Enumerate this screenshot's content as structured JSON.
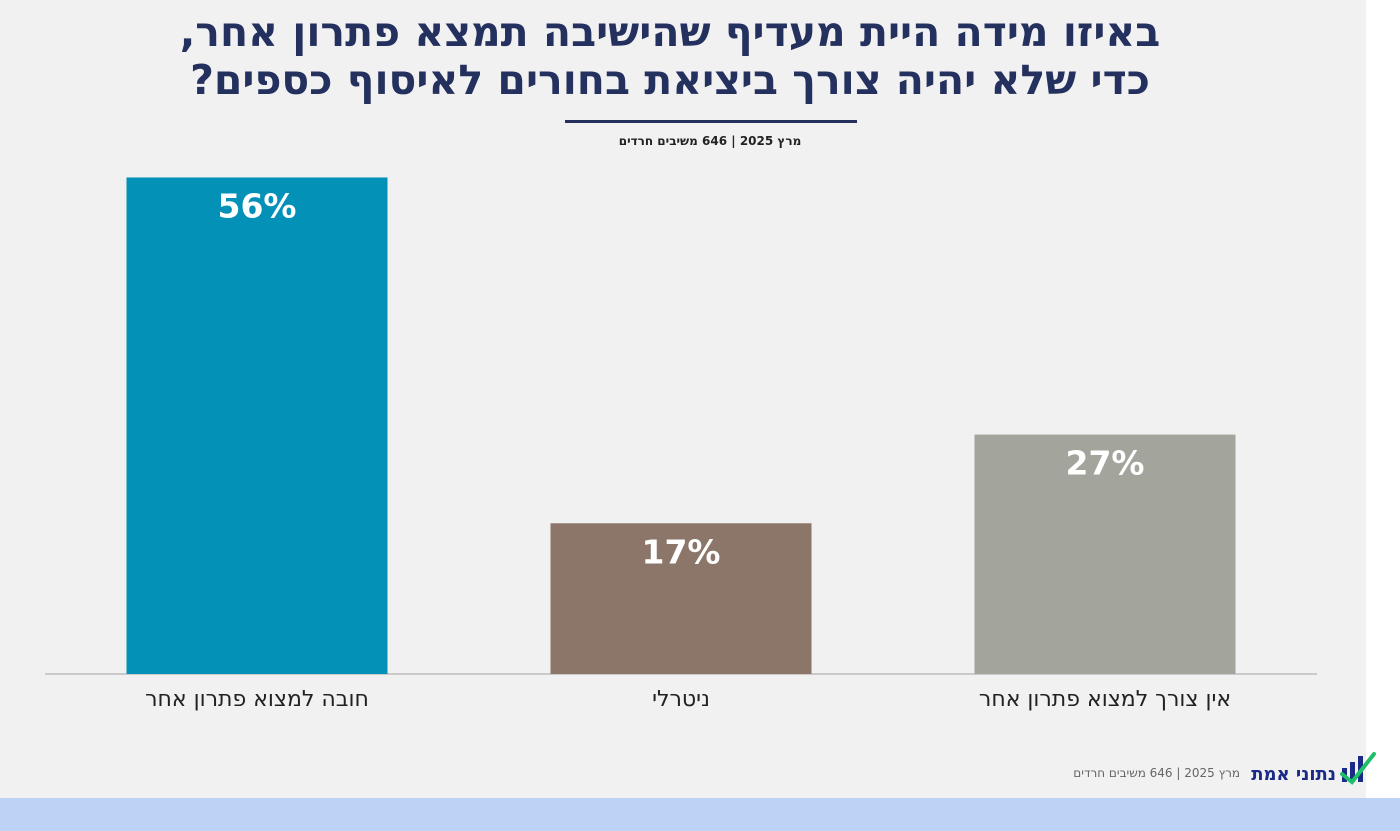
{
  "header": {
    "title_line1": "באיזו מידה היית מעדיף שהישיבה תמצא פתרון אחר,",
    "title_line2": "כדי שלא יהיה צורך ביציאת בחורים לאיסוף כספים?",
    "subtitle": "מרץ 2025 | 646 משיבים חרדים"
  },
  "chart_data": {
    "type": "bar",
    "categories": [
      "חובה למצוא פתרון אחר",
      "ניטרלי",
      "אין צורך למצוא פתרון אחר"
    ],
    "values": [
      56,
      17,
      27
    ],
    "value_labels": [
      "56%",
      "17%",
      "27%"
    ],
    "colors": [
      "#0391b8",
      "#8b7669",
      "#a3a49b"
    ],
    "ylim": [
      0,
      60
    ],
    "grid": false,
    "legend": "none"
  },
  "footer": {
    "source": "מרץ 2025 | 646 משיבים חרדים",
    "logo_text": "נתוני אמת",
    "logo_icon": "bar-chart-check-icon"
  },
  "colors": {
    "title": "#24305e",
    "background": "#f1f1f1",
    "frame": "#bcd3f5"
  }
}
